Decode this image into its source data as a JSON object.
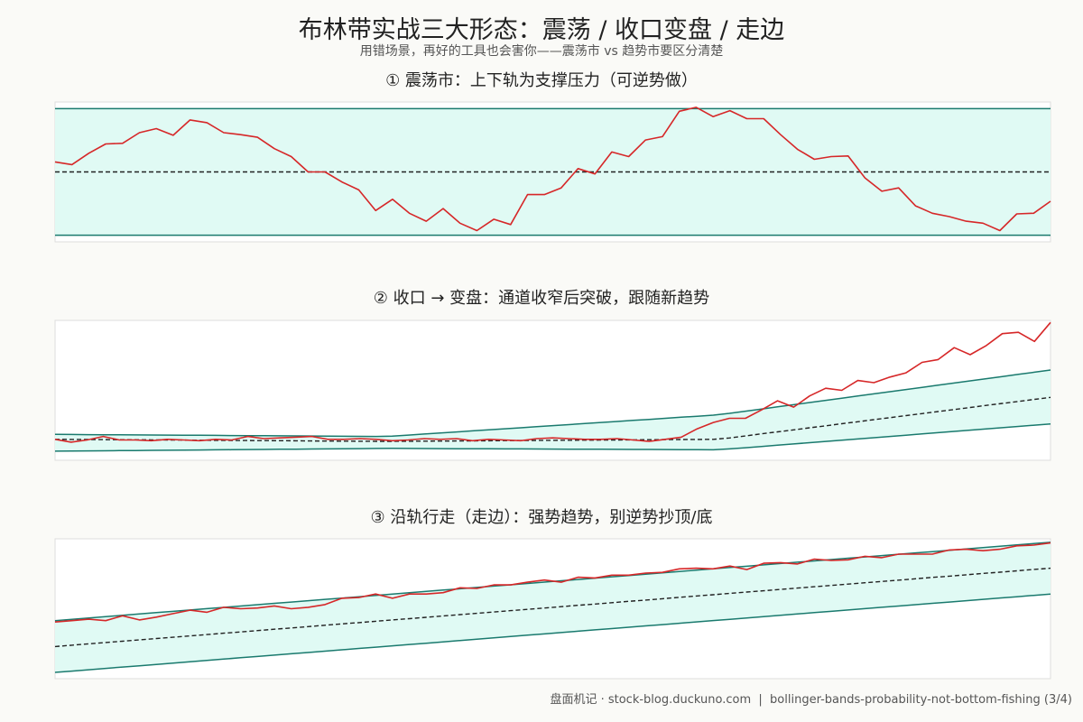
{
  "title": "布林带实战三大形态：震荡 / 收口变盘 / 走边",
  "subtitle": "用错场景，再好的工具也会害你——震荡市 vs 趋势市要区分清楚",
  "colors": {
    "price": "#d62728",
    "band": "#1a7a6e",
    "band_fill": "#e0faf4",
    "middle": "#222222",
    "frame": "#dddddd"
  },
  "chart_data": [
    {
      "type": "line",
      "title": "① 震荡市：上下轨为支撑压力（可逆势做）",
      "xlim": [
        0,
        59
      ],
      "ylim": [
        88.5,
        109.5
      ],
      "grid": false,
      "upper": [
        108.5,
        108.5
      ],
      "middle": [
        99,
        99
      ],
      "lower": [
        89.5,
        89.5
      ],
      "price": [
        100.5,
        100.1,
        101.8,
        103.2,
        103.3,
        104.9,
        105.5,
        104.5,
        106.8,
        106.4,
        104.9,
        104.6,
        104.2,
        102.5,
        101.3,
        99.0,
        99.0,
        97.5,
        96.3,
        93.2,
        94.9,
        92.8,
        91.6,
        93.5,
        91.3,
        90.2,
        91.9,
        91.1,
        95.6,
        95.6,
        96.6,
        99.5,
        98.7,
        102.0,
        101.3,
        103.8,
        104.3,
        108.1,
        108.7,
        107.3,
        108.2,
        107.0,
        107.0,
        104.6,
        102.4,
        100.9,
        101.3,
        101.4,
        98.1,
        96.1,
        96.6,
        93.9,
        92.8,
        92.3,
        91.6,
        91.3,
        90.2,
        92.7,
        92.8,
        94.6
      ]
    },
    {
      "type": "line",
      "title": "② 收口 → 变盘：通道收窄后突破，跟随新趋势",
      "xlim": [
        0,
        59
      ],
      "ylim": [
        97.5,
        117.5
      ],
      "grid": false,
      "upper": [
        101.2,
        100.9,
        104.0,
        110.4
      ],
      "middle": [
        100.5,
        100.2,
        100.5,
        106.5
      ],
      "lower": [
        98.8,
        99.2,
        99.0,
        102.7
      ],
      "price": [
        100.5,
        100.1,
        100.4,
        100.9,
        100.4,
        100.4,
        100.3,
        100.5,
        100.4,
        100.3,
        100.5,
        100.4,
        100.9,
        100.6,
        100.7,
        100.8,
        100.9,
        100.5,
        100.5,
        100.6,
        100.5,
        100.3,
        100.4,
        100.6,
        100.5,
        100.6,
        100.3,
        100.5,
        100.4,
        100.3,
        100.6,
        100.7,
        100.6,
        100.5,
        100.5,
        100.6,
        100.4,
        100.2,
        100.5,
        100.8,
        102.0,
        102.9,
        103.5,
        103.5,
        104.7,
        106.0,
        105.1,
        106.7,
        107.8,
        107.5,
        108.9,
        108.6,
        109.4,
        110.0,
        111.5,
        111.9,
        113.6,
        112.6,
        113.9,
        115.6,
        115.8,
        114.5,
        117.2
      ]
    },
    {
      "type": "line",
      "title": "③ 沿轨行走（走边）：强势趋势，别逆势抄顶/底",
      "xlim": [
        0,
        59
      ],
      "ylim": [
        99,
        119
      ],
      "grid": false,
      "upper": [
        107.3,
        118.5
      ],
      "middle": [
        103.6,
        114.8
      ],
      "lower": [
        99.9,
        111.1
      ],
      "price": [
        107.1,
        107.3,
        107.5,
        107.3,
        108.0,
        107.4,
        107.8,
        108.3,
        108.8,
        108.5,
        109.2,
        109.0,
        109.1,
        109.4,
        109.0,
        109.2,
        109.6,
        110.5,
        110.6,
        111.1,
        110.5,
        111.1,
        111.1,
        111.3,
        112.0,
        111.9,
        112.4,
        112.4,
        112.8,
        113.1,
        112.8,
        113.5,
        113.4,
        113.8,
        113.8,
        114.1,
        114.2,
        114.7,
        114.8,
        114.7,
        115.1,
        114.6,
        115.5,
        115.6,
        115.4,
        116.1,
        115.9,
        116.0,
        116.5,
        116.3,
        116.8,
        116.8,
        116.8,
        117.4,
        117.5,
        117.3,
        117.5,
        118.0,
        118.1,
        118.4
      ]
    }
  ],
  "footer": {
    "brand": "盘面机记",
    "separator": " · ",
    "site": "stock-blog.duckuno.com",
    "divider": "  |  ",
    "slug": "bollinger-bands-probability-not-bottom-fishing",
    "page": "(3/4)"
  }
}
